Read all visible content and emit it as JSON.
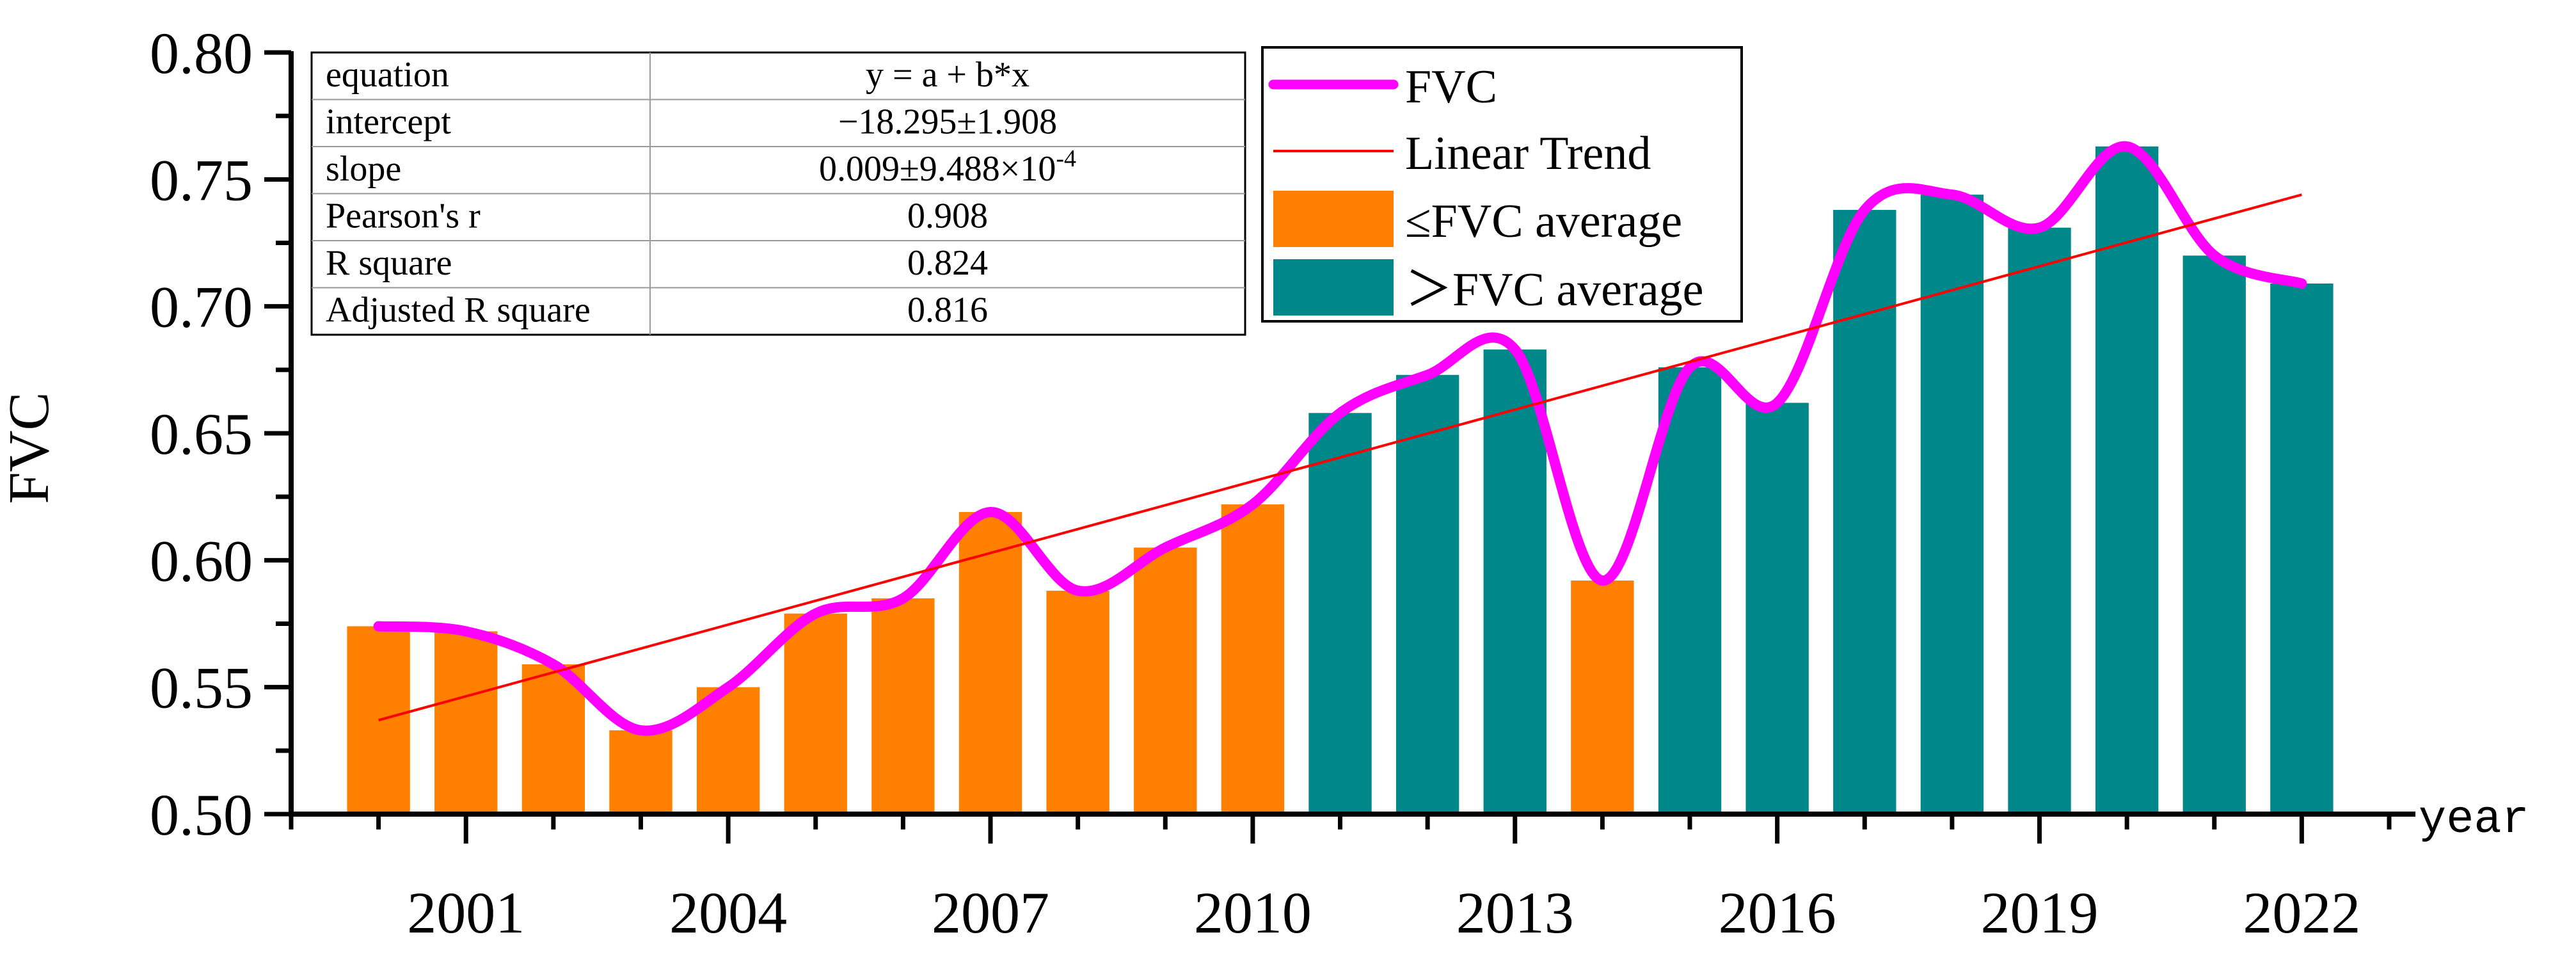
{
  "chart_data": {
    "type": "bar",
    "ylabel": "FVC",
    "xlabel": "year",
    "ylim": [
      0.5,
      0.8
    ],
    "xlim": [
      1999.0,
      2023.3
    ],
    "y_ticks": [
      "0.50",
      "0.55",
      "0.60",
      "0.65",
      "0.70",
      "0.75",
      "0.80"
    ],
    "x_tick_labels": [
      "2001",
      "2004",
      "2007",
      "2010",
      "2013",
      "2016",
      "2019",
      "2022"
    ],
    "x_major_ticks": [
      2001,
      2004,
      2007,
      2010,
      2013,
      2016,
      2019,
      2022
    ],
    "bar_width_years": 0.72,
    "years": [
      2000,
      2001,
      2002,
      2003,
      2004,
      2005,
      2006,
      2007,
      2008,
      2009,
      2010,
      2011,
      2012,
      2013,
      2014,
      2015,
      2016,
      2017,
      2018,
      2019,
      2020,
      2021,
      2022
    ],
    "values": [
      0.574,
      0.572,
      0.559,
      0.533,
      0.55,
      0.579,
      0.585,
      0.619,
      0.588,
      0.605,
      0.622,
      0.658,
      0.673,
      0.683,
      0.592,
      0.676,
      0.662,
      0.738,
      0.744,
      0.731,
      0.763,
      0.72,
      0.709
    ],
    "above_average": [
      false,
      false,
      false,
      false,
      false,
      false,
      false,
      false,
      false,
      false,
      false,
      true,
      true,
      true,
      false,
      true,
      true,
      true,
      true,
      true,
      true,
      true,
      true
    ],
    "trend_line": {
      "x": [
        2000,
        2022
      ],
      "y": [
        0.537,
        0.744
      ]
    },
    "fit_table": {
      "rows": [
        {
          "label": "equation",
          "value": "y = a + b*x"
        },
        {
          "label": "intercept",
          "value": "−18.295±1.908"
        },
        {
          "label": "slope",
          "value": "0.009±9.488×10",
          "sup": "-4"
        },
        {
          "label": "Pearson's r",
          "value": "0.908"
        },
        {
          "label": "R square",
          "value": "0.824"
        },
        {
          "label": "Adjusted R square",
          "value": "0.816"
        }
      ]
    },
    "legend": [
      {
        "label": "FVC",
        "kind": "line"
      },
      {
        "label": "Linear Trend",
        "kind": "thin-line"
      },
      {
        "label": "≤FVC average",
        "kind": "box-low"
      },
      {
        "label": "＞FVC average",
        "kind": "box-high"
      }
    ],
    "colors": {
      "below_avg": "#FF8000",
      "above_avg": "#00878A",
      "fvc_line": "#FF00FF",
      "trend": "#FF0000",
      "axis": "#000000"
    }
  }
}
